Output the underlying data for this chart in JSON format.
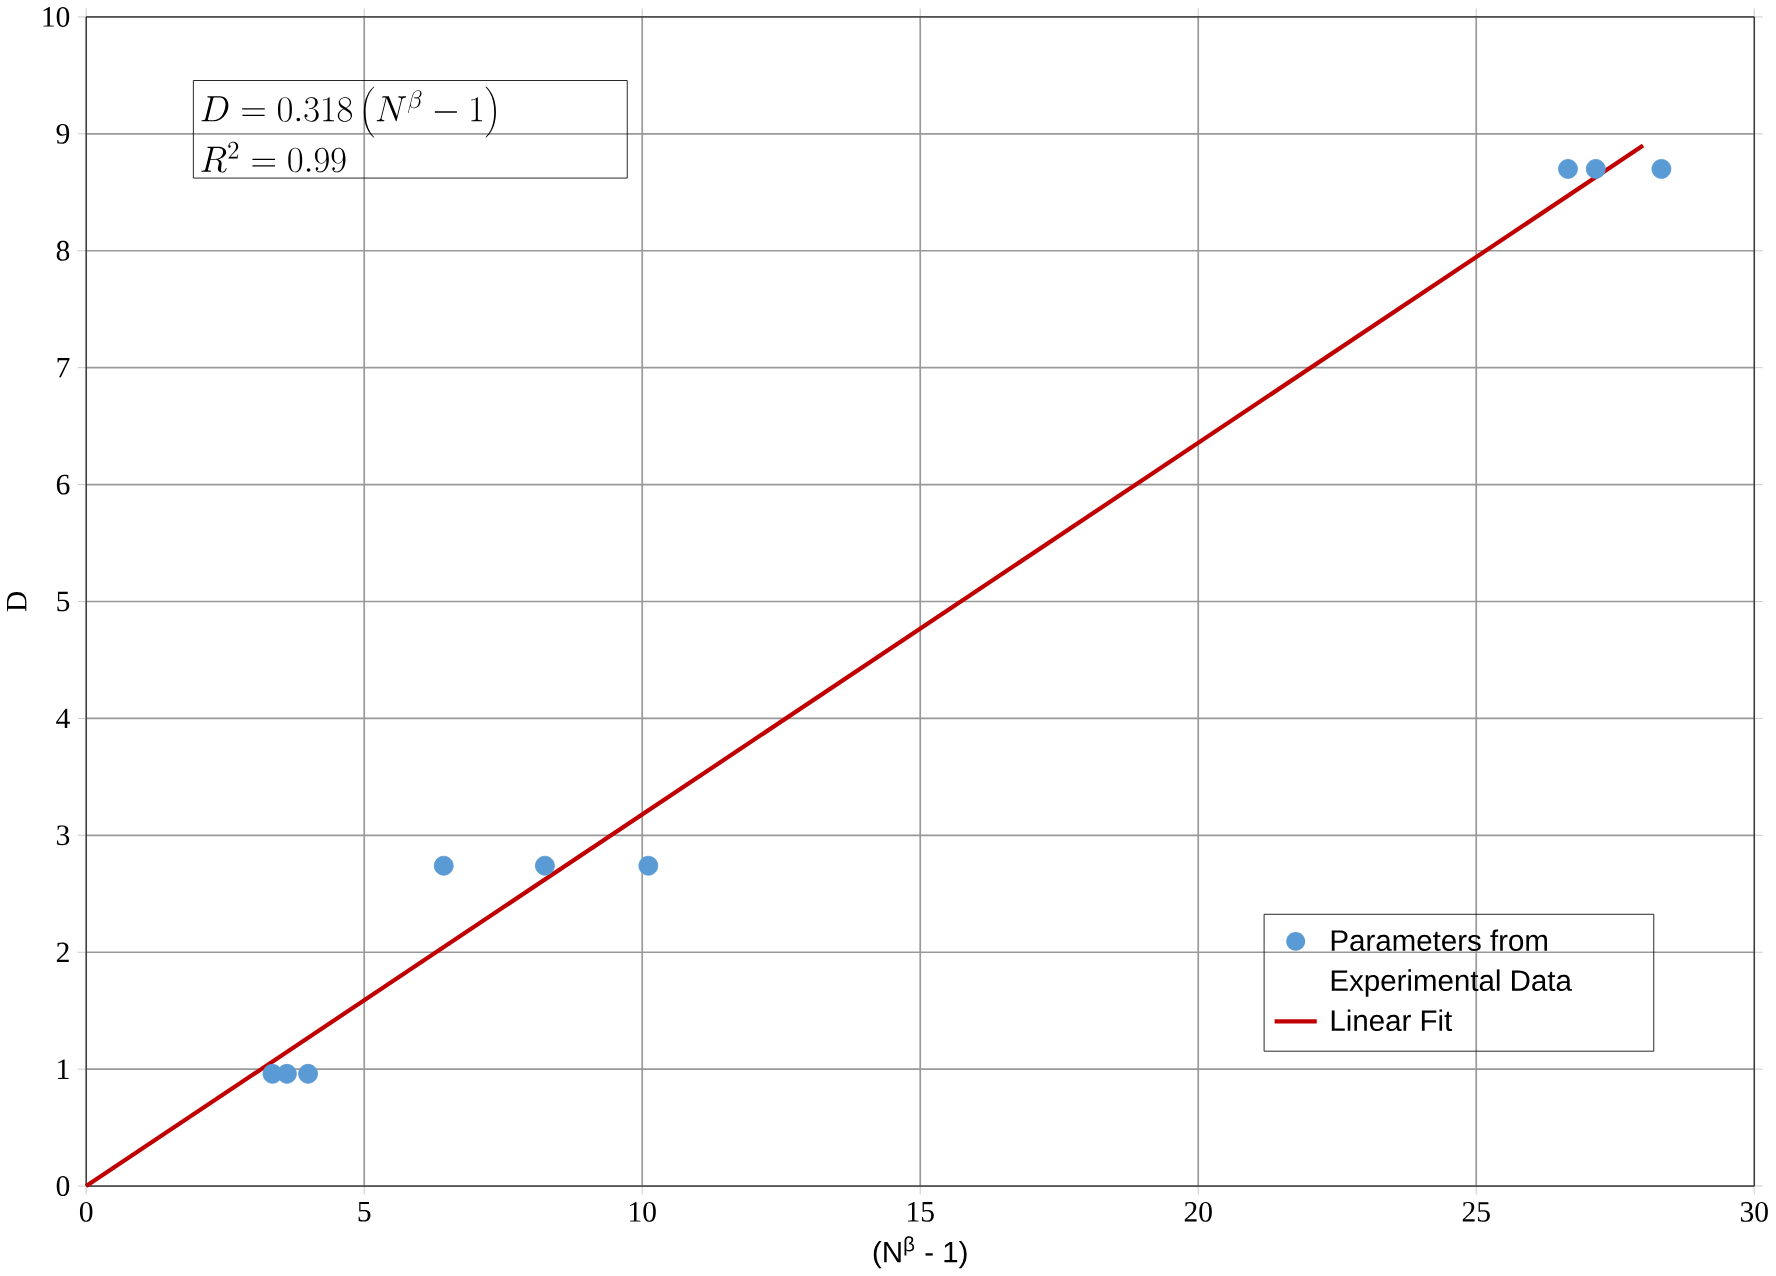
{
  "chart_data": {
    "type": "scatter",
    "xlabel": "(N$^{β}$ - 1)",
    "ylabel": "D",
    "xlim": [
      0,
      30
    ],
    "ylim": [
      0,
      10
    ],
    "xticks": [
      0,
      5,
      10,
      15,
      20,
      25,
      30
    ],
    "yticks": [
      0,
      1,
      2,
      3,
      4,
      5,
      6,
      7,
      8,
      9,
      10
    ],
    "grid": true,
    "legend": "bottom right",
    "annotations": [
      "D = 0.318\\left(N^{\\beta} - 1\\right)",
      "R^{2} = 0.99"
    ],
    "series": [
      {
        "name": "Parameters from Experimental Data",
        "type": "scatter",
        "color": "#5b9bd5",
        "marker": "circle",
        "x": [
          3.35,
          3.61,
          3.99,
          6.43,
          8.25,
          10.11,
          26.65,
          27.15,
          28.33
        ],
        "values": [
          0.96,
          0.96,
          0.96,
          2.74,
          2.74,
          2.74,
          8.7,
          8.7,
          8.7
        ]
      },
      {
        "name": "Linear Fit",
        "type": "line",
        "color": "#c00000",
        "line_style": "solid",
        "x": [
          0,
          28
        ],
        "values": [
          0,
          8.9
        ]
      }
    ]
  }
}
